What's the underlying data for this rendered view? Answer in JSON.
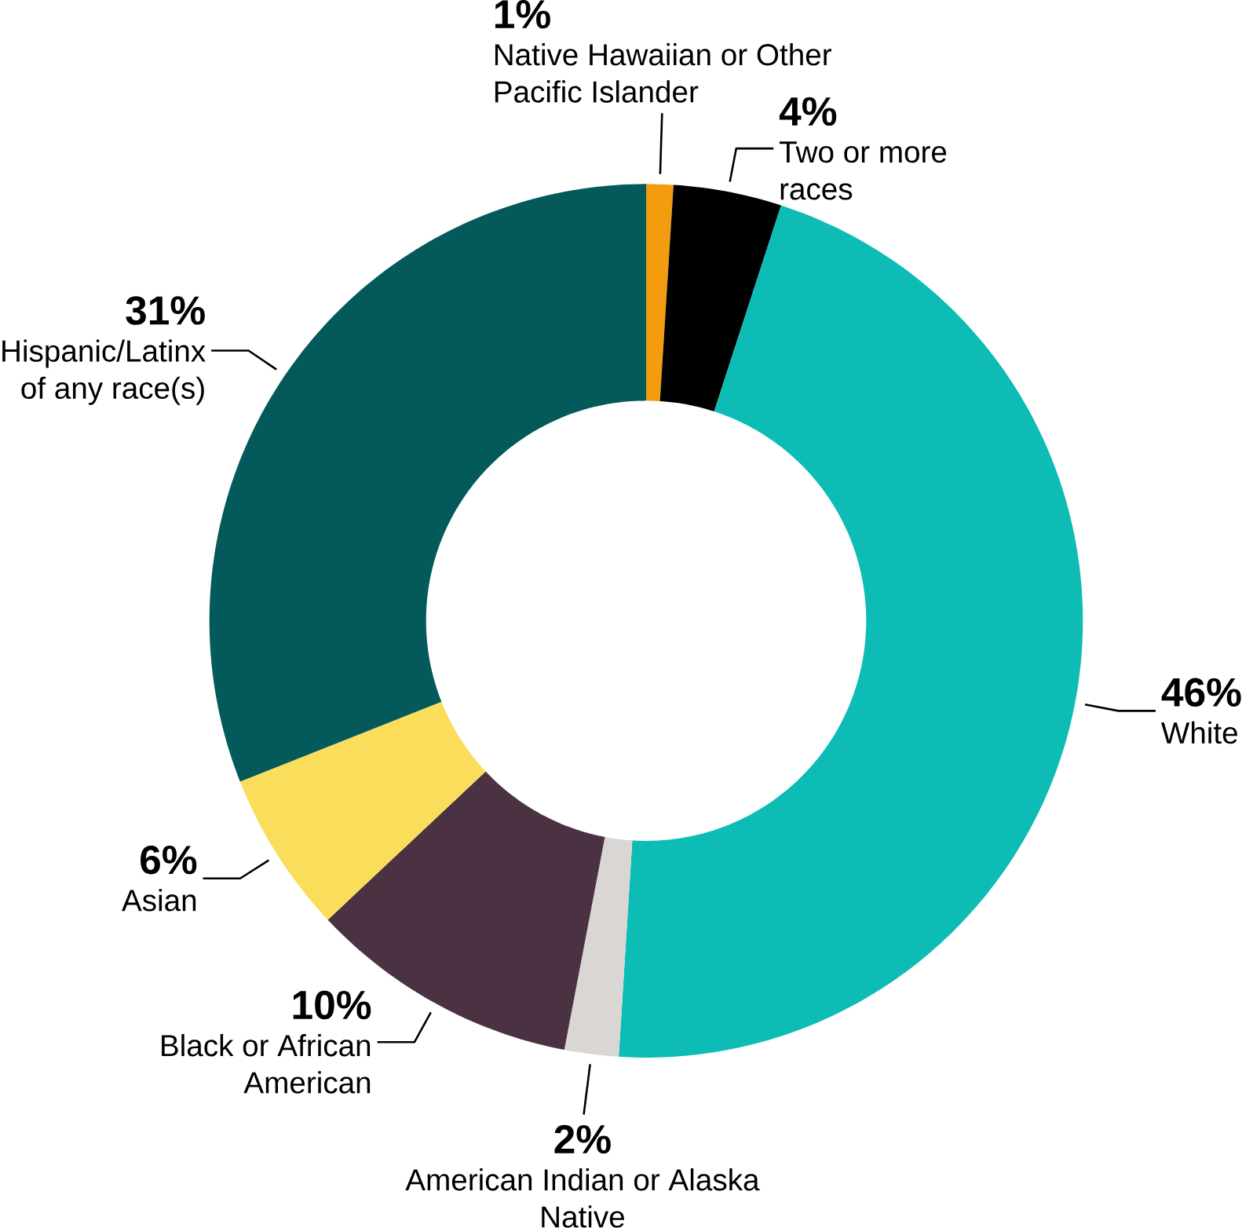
{
  "chart_data": {
    "type": "donut",
    "categories": [
      "Native Hawaiian or Other Pacific Islander",
      "Two or more races",
      "White",
      "American Indian or Alaska Native",
      "Black or African American",
      "Asian",
      "Hispanic/Latinx of any race(s)"
    ],
    "values": [
      1,
      4,
      46,
      2,
      10,
      6,
      31
    ],
    "value_labels": [
      "1%",
      "4%",
      "46%",
      "2%",
      "10%",
      "6%",
      "31%"
    ],
    "colors": [
      "#f39c0f",
      "#000000",
      "#0dbcb5",
      "#d9d6d4",
      "#4a3242",
      "#fadd5a",
      "#04595a"
    ]
  }
}
